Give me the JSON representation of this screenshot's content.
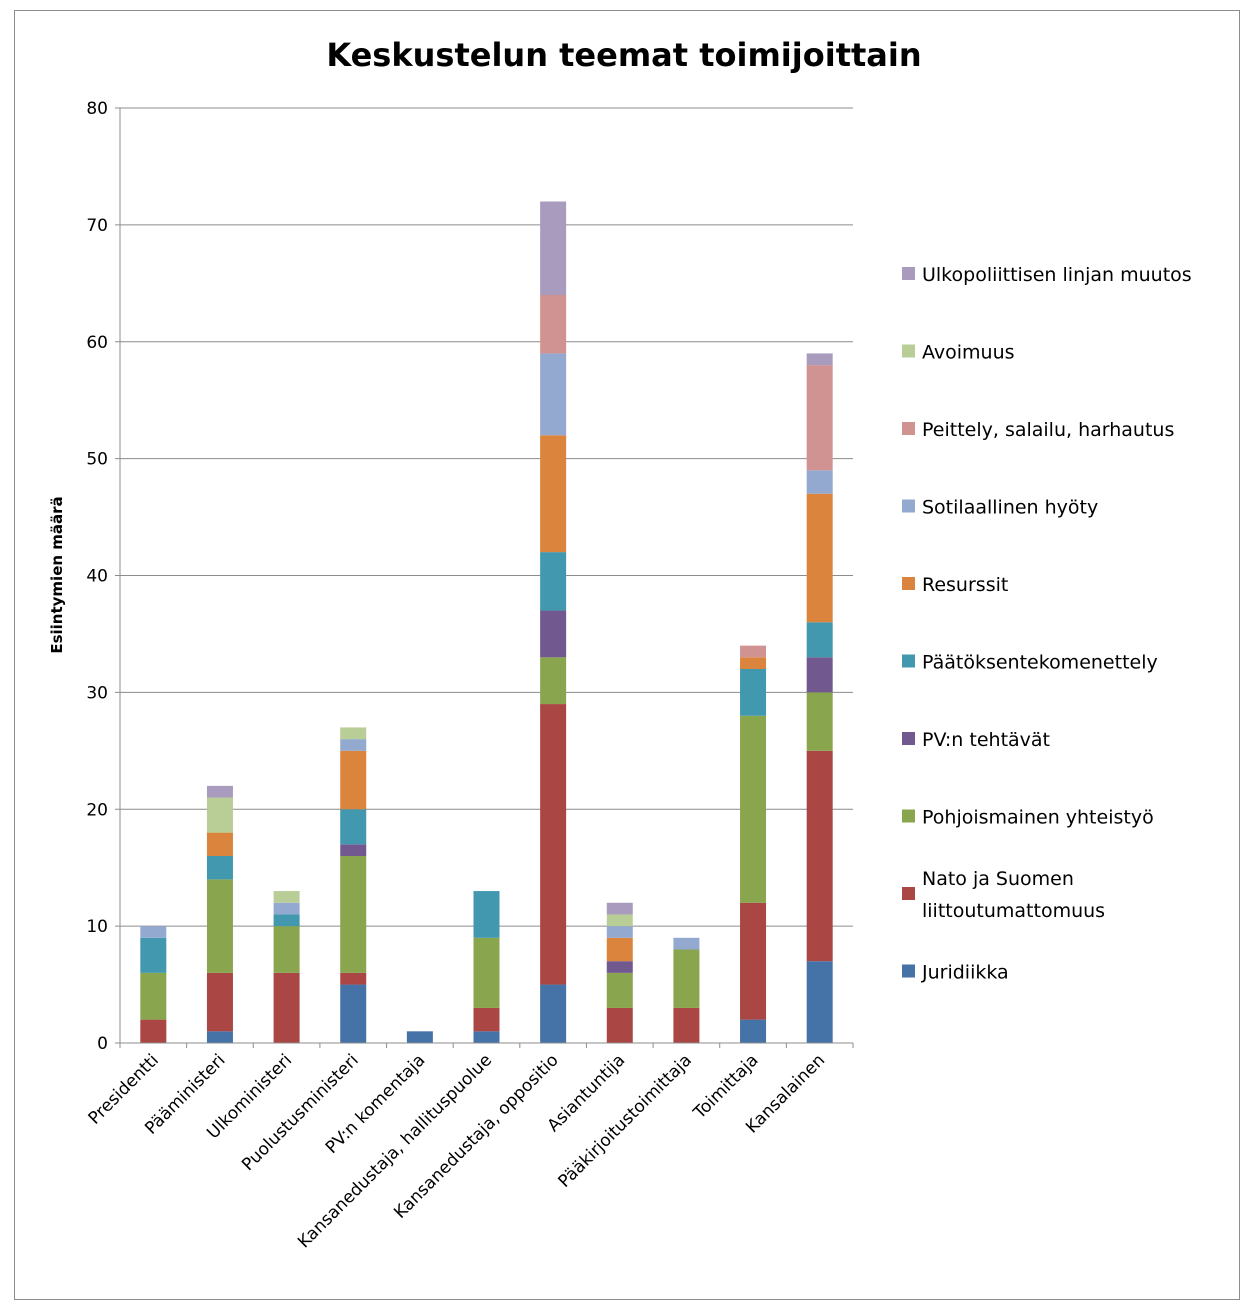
{
  "chart_data": {
    "type": "bar",
    "stacked": true,
    "title": "Keskustelun teemat toimijoittain",
    "ylabel": "Esiintymien määrä",
    "xlabel": "",
    "ylim": [
      0,
      80
    ],
    "yticks": [
      0,
      10,
      20,
      30,
      40,
      50,
      60,
      70,
      80
    ],
    "grid": true,
    "legend_position": "right",
    "categories": [
      "Presidentti",
      "Pääministeri",
      "Ulkoministeri",
      "Puolustusministeri",
      "PV:n komentaja",
      "Kansanedustaja, hallituspuolue",
      "Kansanedustaja, oppositio",
      "Asiantuntija",
      "Pääkirjoitustoimittaja",
      "Toimittaja",
      "Kansalainen"
    ],
    "series": [
      {
        "name": "Juridiikka",
        "color": "#4572A7",
        "values": [
          0,
          1,
          0,
          5,
          1,
          1,
          5,
          0,
          0,
          2,
          7
        ]
      },
      {
        "name": "Nato ja Suomen liittoutumattomuus",
        "color": "#AA4643",
        "values": [
          2,
          5,
          6,
          1,
          0,
          2,
          24,
          3,
          3,
          10,
          18
        ]
      },
      {
        "name": "Pohjoismainen yhteistyö",
        "color": "#89A54E",
        "values": [
          4,
          8,
          4,
          10,
          0,
          6,
          4,
          3,
          5,
          16,
          5
        ]
      },
      {
        "name": "PV:n tehtävät",
        "color": "#71588F",
        "values": [
          0,
          0,
          0,
          1,
          0,
          0,
          4,
          1,
          0,
          0,
          3
        ]
      },
      {
        "name": "Päätöksentekomenettely",
        "color": "#4198AF",
        "values": [
          3,
          2,
          1,
          3,
          0,
          4,
          5,
          0,
          0,
          4,
          3
        ]
      },
      {
        "name": "Resurssit",
        "color": "#DB843D",
        "values": [
          0,
          2,
          0,
          5,
          0,
          0,
          10,
          2,
          0,
          1,
          11
        ]
      },
      {
        "name": "Sotilaallinen hyöty",
        "color": "#93A9CF",
        "values": [
          1,
          0,
          1,
          1,
          0,
          0,
          7,
          1,
          1,
          0,
          2
        ]
      },
      {
        "name": "Peittely, salailu, harhautus",
        "color": "#D19392",
        "values": [
          0,
          0,
          0,
          0,
          0,
          0,
          5,
          0,
          0,
          1,
          9
        ]
      },
      {
        "name": "Avoimuus",
        "color": "#B9CD96",
        "values": [
          0,
          3,
          1,
          1,
          0,
          0,
          0,
          1,
          0,
          0,
          0
        ]
      },
      {
        "name": "Ulkopoliittisen linjan muutos",
        "color": "#A99BBD",
        "values": [
          0,
          1,
          0,
          0,
          0,
          0,
          8,
          1,
          0,
          0,
          1
        ]
      }
    ],
    "legend": [
      {
        "label": "Ulkopoliittisen linjan muutos",
        "lines": [
          "Ulkopoliittisen linjan muutos"
        ],
        "color": "#A99BBD"
      },
      {
        "label": "Avoimuus",
        "lines": [
          "Avoimuus"
        ],
        "color": "#B9CD96"
      },
      {
        "label": "Peittely, salailu, harhautus",
        "lines": [
          "Peittely, salailu, harhautus"
        ],
        "color": "#D19392"
      },
      {
        "label": "Sotilaallinen hyöty",
        "lines": [
          "Sotilaallinen hyöty"
        ],
        "color": "#93A9CF"
      },
      {
        "label": "Resurssit",
        "lines": [
          "Resurssit"
        ],
        "color": "#DB843D"
      },
      {
        "label": "Päätöksentekomenettely",
        "lines": [
          "Päätöksentekomenettely"
        ],
        "color": "#4198AF"
      },
      {
        "label": "PV:n tehtävät",
        "lines": [
          "PV:n tehtävät"
        ],
        "color": "#71588F"
      },
      {
        "label": "Pohjoismainen yhteistyö",
        "lines": [
          "Pohjoismainen yhteistyö"
        ],
        "color": "#89A54E"
      },
      {
        "label": "Nato ja Suomen liittoutumattomuus",
        "lines": [
          "Nato ja Suomen",
          "liittoutumattomuus"
        ],
        "color": "#AA4643"
      },
      {
        "label": "Juridiikka",
        "lines": [
          "Juridiikka"
        ],
        "color": "#4572A7"
      }
    ]
  }
}
